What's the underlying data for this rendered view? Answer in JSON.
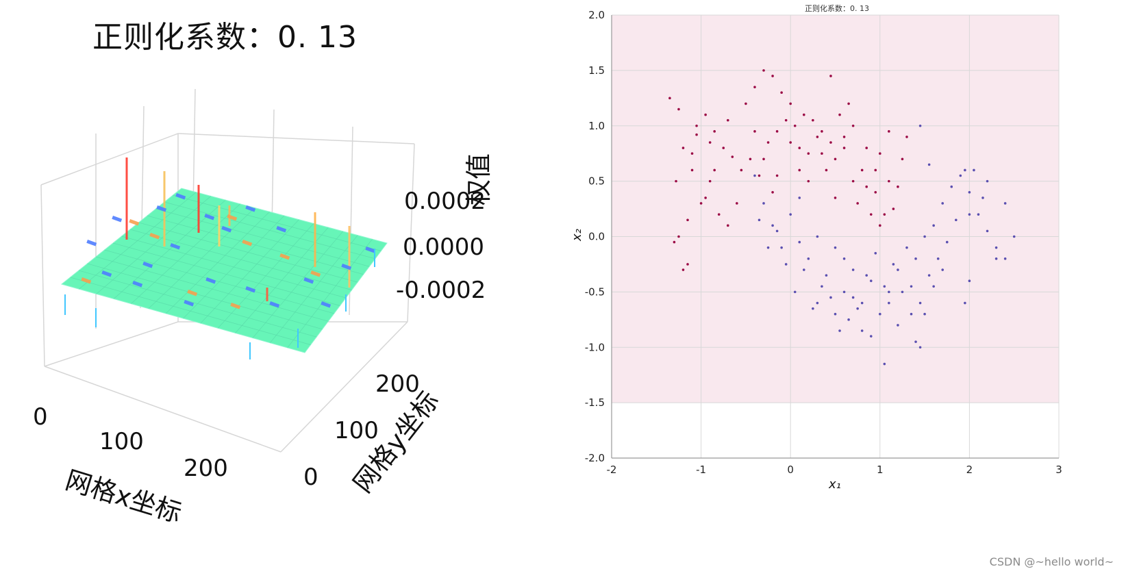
{
  "left_chart": {
    "title": "正则化系数：0. 13",
    "zlabel": "权值",
    "xlabel": "网格x坐标",
    "ylabel": "网格y坐标",
    "xticks": [
      "0",
      "100",
      "200"
    ],
    "yticks": [
      "0",
      "100",
      "200"
    ],
    "zticks": [
      "-0.0002",
      "0.0000",
      "0.0002"
    ]
  },
  "right_chart": {
    "title": "正则化系数：0. 13",
    "xlabel": "x₁",
    "ylabel": "x₂"
  },
  "chart_data": [
    {
      "type": "heatmap",
      "title": "正则化系数：0. 13",
      "xlabel": "网格x坐标",
      "ylabel": "网格y坐标",
      "zlabel": "权值",
      "xlim": [
        0,
        250
      ],
      "ylim": [
        0,
        250
      ],
      "zlim": [
        -0.0002,
        0.0002
      ],
      "x_ticks": [
        0,
        100,
        200
      ],
      "y_ticks": [
        0,
        100,
        200
      ],
      "z_ticks": [
        -0.0002,
        0.0,
        0.0002
      ],
      "grid": true,
      "colormap": "rainbow"
    },
    {
      "type": "scatter",
      "title": "正则化系数：0. 13",
      "xlabel": "x₁",
      "ylabel": "x₂",
      "xlim": [
        -2,
        3
      ],
      "ylim": [
        -2,
        2
      ],
      "xticks": [
        -2,
        -1,
        0,
        1,
        2,
        3
      ],
      "yticks": [
        -2.0,
        -1.5,
        -1.0,
        -0.5,
        0.0,
        0.5,
        1.0,
        1.5,
        2.0
      ],
      "grid": true,
      "background": "#f9e8ee",
      "series": [
        {
          "color": "#9b0a45",
          "points": [
            [
              -1.35,
              1.25
            ],
            [
              -1.25,
              1.15
            ],
            [
              -1.2,
              0.8
            ],
            [
              -1.1,
              0.6
            ],
            [
              -1.05,
              0.92
            ],
            [
              -0.95,
              1.1
            ],
            [
              -0.85,
              0.95
            ],
            [
              -0.75,
              0.8
            ],
            [
              -0.65,
              0.72
            ],
            [
              -0.55,
              0.6
            ],
            [
              -0.45,
              0.7
            ],
            [
              -0.35,
              0.55
            ],
            [
              -0.25,
              0.85
            ],
            [
              -0.15,
              0.95
            ],
            [
              -0.05,
              1.05
            ],
            [
              0.05,
              1.0
            ],
            [
              0.1,
              0.8
            ],
            [
              0.2,
              0.75
            ],
            [
              0.3,
              0.9
            ],
            [
              0.4,
              0.6
            ],
            [
              0.5,
              0.7
            ],
            [
              0.6,
              0.8
            ],
            [
              0.7,
              0.5
            ],
            [
              0.75,
              0.3
            ],
            [
              0.8,
              0.6
            ],
            [
              0.85,
              0.45
            ],
            [
              0.9,
              0.2
            ],
            [
              0.95,
              0.4
            ],
            [
              1.0,
              0.1
            ],
            [
              1.05,
              0.2
            ],
            [
              -0.9,
              0.5
            ],
            [
              -1.0,
              0.3
            ],
            [
              -1.15,
              0.15
            ],
            [
              -1.25,
              0.0
            ],
            [
              -1.3,
              -0.05
            ],
            [
              -0.8,
              0.2
            ],
            [
              -0.7,
              0.1
            ],
            [
              -0.5,
              1.2
            ],
            [
              -0.4,
              1.35
            ],
            [
              -0.3,
              1.5
            ],
            [
              -0.2,
              1.45
            ],
            [
              -0.1,
              1.3
            ],
            [
              0.0,
              1.2
            ],
            [
              0.15,
              1.1
            ],
            [
              0.25,
              1.05
            ],
            [
              0.35,
              0.95
            ],
            [
              0.45,
              1.45
            ],
            [
              0.55,
              1.1
            ],
            [
              0.65,
              1.2
            ],
            [
              0.7,
              1.0
            ],
            [
              -1.2,
              -0.3
            ],
            [
              -1.15,
              -0.25
            ],
            [
              -1.28,
              0.5
            ],
            [
              -0.9,
              0.85
            ],
            [
              -0.6,
              0.3
            ],
            [
              -0.2,
              0.4
            ],
            [
              0.2,
              0.5
            ],
            [
              0.5,
              0.35
            ],
            [
              0.85,
              0.8
            ],
            [
              1.0,
              0.75
            ],
            [
              1.1,
              0.5
            ],
            [
              1.15,
              0.25
            ],
            [
              1.2,
              0.45
            ],
            [
              1.25,
              0.7
            ],
            [
              1.3,
              0.9
            ],
            [
              1.1,
              0.95
            ],
            [
              0.95,
              0.6
            ],
            [
              0.6,
              0.9
            ],
            [
              -0.4,
              0.95
            ],
            [
              -0.7,
              1.05
            ],
            [
              -1.05,
              1.0
            ],
            [
              -1.1,
              0.75
            ],
            [
              -0.95,
              0.35
            ],
            [
              -0.85,
              0.6
            ],
            [
              0.35,
              0.75
            ],
            [
              0.45,
              0.85
            ],
            [
              0.1,
              0.6
            ],
            [
              0.0,
              0.85
            ],
            [
              -0.3,
              0.7
            ],
            [
              -0.15,
              0.55
            ]
          ]
        },
        {
          "color": "#5a4fb0",
          "points": [
            [
              -0.4,
              0.55
            ],
            [
              -0.3,
              0.3
            ],
            [
              -0.2,
              0.1
            ],
            [
              -0.1,
              -0.1
            ],
            [
              0.0,
              0.2
            ],
            [
              0.1,
              0.35
            ],
            [
              0.2,
              -0.2
            ],
            [
              0.3,
              0.0
            ],
            [
              0.4,
              -0.35
            ],
            [
              0.5,
              -0.1
            ],
            [
              0.6,
              -0.5
            ],
            [
              0.7,
              -0.3
            ],
            [
              0.8,
              -0.6
            ],
            [
              0.9,
              -0.4
            ],
            [
              1.0,
              -0.7
            ],
            [
              1.1,
              -0.5
            ],
            [
              1.2,
              -0.3
            ],
            [
              1.3,
              -0.1
            ],
            [
              1.4,
              -0.2
            ],
            [
              1.5,
              0.0
            ],
            [
              1.6,
              0.1
            ],
            [
              1.7,
              0.3
            ],
            [
              1.8,
              0.45
            ],
            [
              1.9,
              0.55
            ],
            [
              2.0,
              0.4
            ],
            [
              2.1,
              0.2
            ],
            [
              2.2,
              0.05
            ],
            [
              2.3,
              -0.1
            ],
            [
              2.4,
              0.3
            ],
            [
              2.5,
              0.0
            ],
            [
              1.95,
              0.6
            ],
            [
              2.05,
              0.6
            ],
            [
              2.15,
              0.35
            ],
            [
              1.85,
              0.15
            ],
            [
              1.75,
              -0.05
            ],
            [
              1.65,
              -0.2
            ],
            [
              1.55,
              -0.35
            ],
            [
              1.45,
              -0.6
            ],
            [
              1.35,
              -0.7
            ],
            [
              1.25,
              -0.5
            ],
            [
              1.15,
              -0.25
            ],
            [
              1.05,
              -0.45
            ],
            [
              0.95,
              -0.15
            ],
            [
              0.85,
              -0.35
            ],
            [
              0.75,
              -0.65
            ],
            [
              0.65,
              -0.75
            ],
            [
              0.55,
              -0.85
            ],
            [
              0.45,
              -0.55
            ],
            [
              0.35,
              -0.45
            ],
            [
              0.25,
              -0.65
            ],
            [
              0.15,
              -0.3
            ],
            [
              0.05,
              -0.5
            ],
            [
              -0.05,
              -0.25
            ],
            [
              -0.15,
              0.05
            ],
            [
              -0.25,
              -0.1
            ],
            [
              -0.35,
              0.15
            ],
            [
              1.05,
              -1.15
            ],
            [
              1.45,
              -1.0
            ],
            [
              1.4,
              -0.95
            ],
            [
              0.8,
              -0.85
            ],
            [
              0.9,
              -0.9
            ],
            [
              1.95,
              -0.6
            ],
            [
              2.0,
              -0.4
            ],
            [
              2.3,
              -0.2
            ],
            [
              2.4,
              -0.2
            ],
            [
              1.45,
              1.0
            ],
            [
              1.55,
              0.65
            ],
            [
              2.2,
              0.5
            ],
            [
              2.0,
              0.2
            ],
            [
              1.7,
              -0.3
            ],
            [
              1.6,
              -0.45
            ],
            [
              1.5,
              -0.7
            ],
            [
              1.35,
              -0.45
            ],
            [
              1.2,
              -0.8
            ],
            [
              1.1,
              -0.6
            ],
            [
              0.7,
              -0.55
            ],
            [
              0.6,
              -0.2
            ],
            [
              0.5,
              -0.7
            ],
            [
              0.3,
              -0.6
            ],
            [
              0.1,
              -0.05
            ]
          ]
        }
      ]
    }
  ],
  "watermark": "CSDN @~hello world~"
}
